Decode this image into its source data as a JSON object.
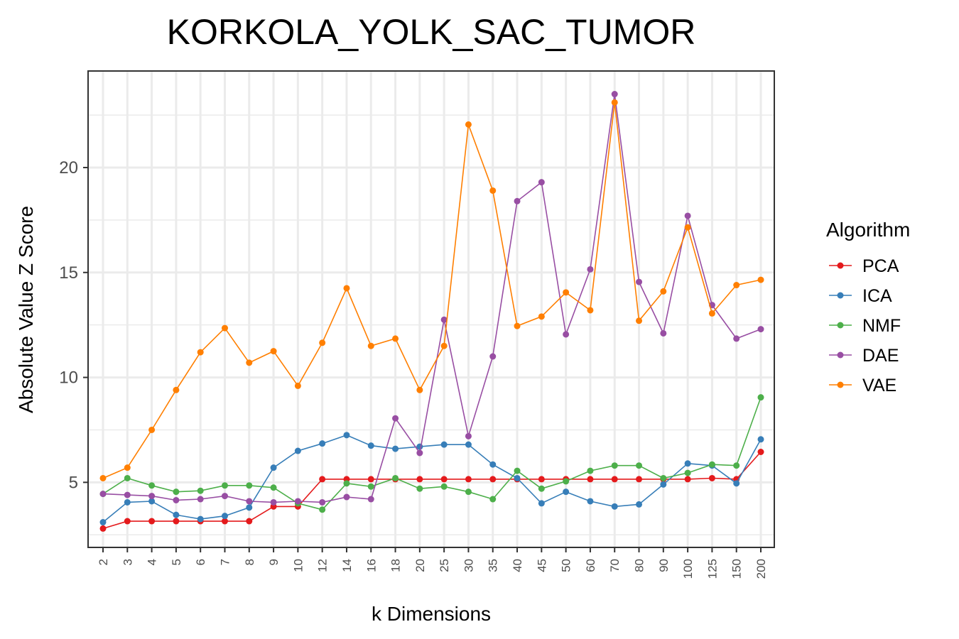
{
  "chart_data": {
    "type": "line",
    "title": "KORKOLA_YOLK_SAC_TUMOR",
    "xlabel": "k Dimensions",
    "ylabel": "Absolute Value Z Score",
    "categories": [
      "2",
      "3",
      "4",
      "5",
      "6",
      "7",
      "8",
      "9",
      "10",
      "12",
      "14",
      "16",
      "18",
      "20",
      "25",
      "30",
      "35",
      "40",
      "45",
      "50",
      "60",
      "70",
      "80",
      "90",
      "100",
      "125",
      "150",
      "200"
    ],
    "yticks": [
      5,
      10,
      15,
      20
    ],
    "ylim": [
      1.9,
      24.6
    ],
    "grid": true,
    "legend": {
      "title": "Algorithm",
      "position": "right"
    },
    "series": [
      {
        "name": "PCA",
        "color": "#e41a1c",
        "values": [
          2.8,
          3.15,
          3.15,
          3.15,
          3.15,
          3.15,
          3.15,
          3.85,
          3.85,
          5.15,
          5.15,
          5.15,
          5.15,
          5.15,
          5.15,
          5.15,
          5.15,
          5.15,
          5.15,
          5.15,
          5.15,
          5.15,
          5.15,
          5.15,
          5.15,
          5.2,
          5.15,
          6.45
        ]
      },
      {
        "name": "ICA",
        "color": "#377eb8",
        "values": [
          3.1,
          4.05,
          4.1,
          3.45,
          3.25,
          3.4,
          3.8,
          5.7,
          6.5,
          6.85,
          7.25,
          6.75,
          6.6,
          6.7,
          6.8,
          6.8,
          5.85,
          5.2,
          4.0,
          4.55,
          4.1,
          3.85,
          3.95,
          4.9,
          5.9,
          5.8,
          4.95,
          7.05
        ]
      },
      {
        "name": "NMF",
        "color": "#4daf4a",
        "values": [
          4.45,
          5.2,
          4.85,
          4.55,
          4.6,
          4.85,
          4.85,
          4.75,
          4.0,
          3.7,
          4.95,
          4.8,
          5.2,
          4.7,
          4.8,
          4.55,
          4.2,
          5.55,
          4.7,
          5.05,
          5.55,
          5.8,
          5.8,
          5.2,
          5.45,
          5.85,
          5.8,
          9.05
        ]
      },
      {
        "name": "DAE",
        "color": "#984ea3",
        "values": [
          4.45,
          4.4,
          4.35,
          4.15,
          4.2,
          4.35,
          4.1,
          4.05,
          4.1,
          4.05,
          4.3,
          4.2,
          8.05,
          6.4,
          12.75,
          7.2,
          11.0,
          18.4,
          19.3,
          12.05,
          15.15,
          23.5,
          14.55,
          12.1,
          17.7,
          13.45,
          11.85,
          12.3
        ]
      },
      {
        "name": "VAE",
        "color": "#ff7f00",
        "values": [
          5.2,
          5.7,
          7.5,
          9.4,
          11.2,
          12.35,
          10.7,
          11.25,
          9.6,
          11.65,
          14.25,
          11.5,
          11.85,
          9.4,
          11.5,
          22.05,
          18.9,
          12.45,
          12.9,
          14.05,
          13.2,
          23.1,
          12.7,
          14.1,
          17.15,
          13.05,
          14.4,
          14.65
        ]
      }
    ]
  }
}
